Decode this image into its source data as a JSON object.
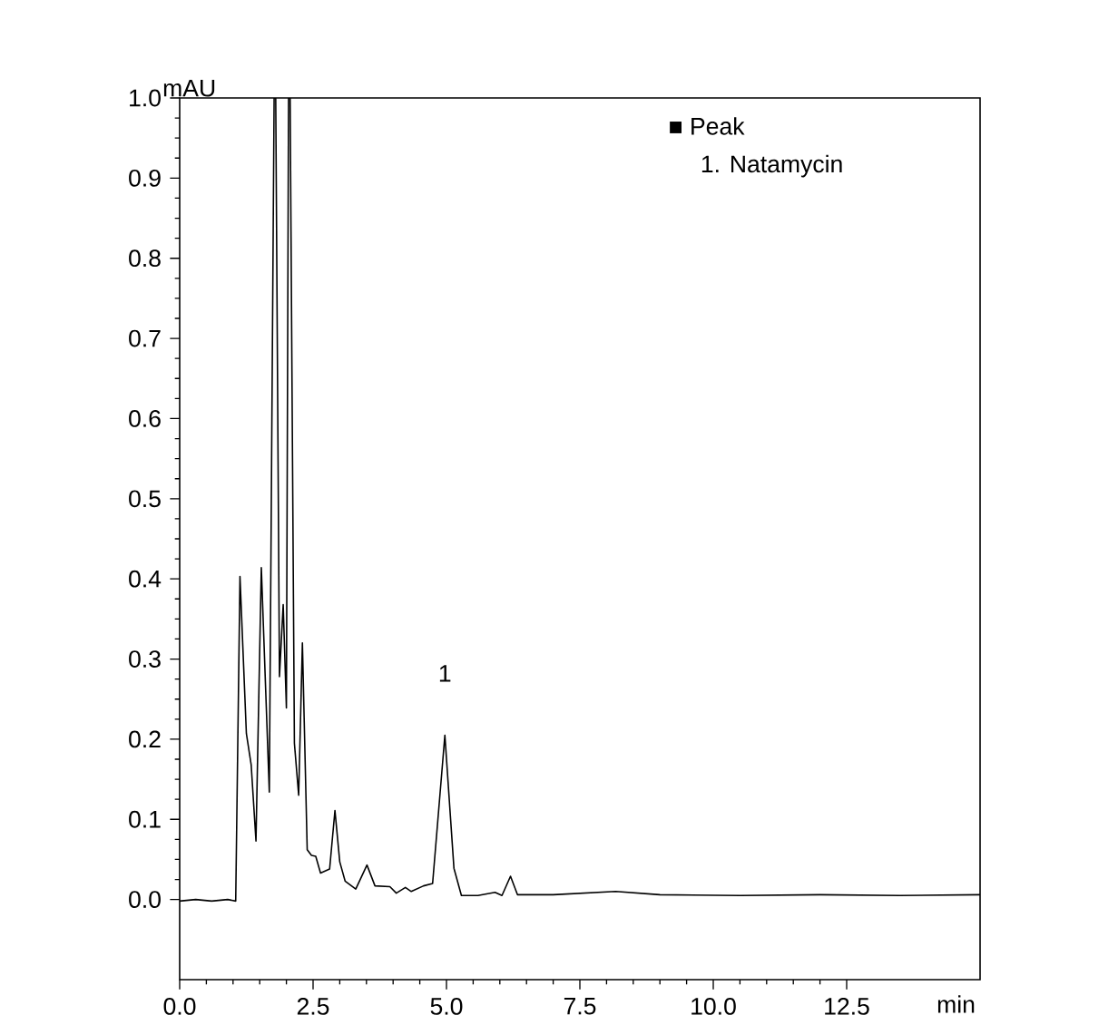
{
  "chart_data": {
    "type": "line",
    "xlabel": "min",
    "ylabel": "mAU",
    "xlim": [
      0,
      15
    ],
    "ylim": [
      -0.1,
      1.0
    ],
    "xticks": [
      {
        "value": 0,
        "label": "0.0"
      },
      {
        "value": 2.5,
        "label": "2.5"
      },
      {
        "value": 5,
        "label": "5.0"
      },
      {
        "value": 7.5,
        "label": "7.5"
      },
      {
        "value": 10,
        "label": "10.0"
      },
      {
        "value": 12.5,
        "label": "12.5"
      }
    ],
    "yticks": [
      {
        "value": 0,
        "label": "0.0"
      },
      {
        "value": 0.1,
        "label": "0.1"
      },
      {
        "value": 0.2,
        "label": "0.2"
      },
      {
        "value": 0.3,
        "label": "0.3"
      },
      {
        "value": 0.4,
        "label": "0.4"
      },
      {
        "value": 0.5,
        "label": "0.5"
      },
      {
        "value": 0.6,
        "label": "0.6"
      },
      {
        "value": 0.7,
        "label": "0.7"
      },
      {
        "value": 0.8,
        "label": "0.8"
      },
      {
        "value": 0.9,
        "label": "0.9"
      },
      {
        "value": 1.0,
        "label": "1.0"
      }
    ],
    "series": [
      {
        "color": "#000000",
        "x": [
          0,
          0.3,
          0.6,
          0.9,
          1.05,
          1.13,
          1.25,
          1.34,
          1.43,
          1.53,
          1.68,
          1.77,
          1.8,
          1.87,
          1.94,
          2.0,
          2.04,
          2.07,
          2.15,
          2.23,
          2.3,
          2.39,
          2.47,
          2.55,
          2.64,
          2.81,
          2.91,
          3.0,
          3.1,
          3.3,
          3.51,
          3.66,
          3.94,
          4.06,
          4.23,
          4.34,
          4.57,
          4.74,
          4.97,
          5.14,
          5.28,
          5.59,
          5.91,
          6.04,
          6.2,
          6.33,
          7.0,
          8.17,
          9.0,
          10.5,
          12.0,
          13.5,
          15.0
        ],
        "values": [
          -0.002,
          0.0,
          -0.002,
          0.0,
          -0.002,
          0.403,
          0.207,
          0.168,
          0.073,
          0.414,
          0.134,
          1.0,
          1.0,
          0.278,
          0.368,
          0.239,
          1.0,
          1.0,
          0.195,
          0.13,
          0.32,
          0.062,
          0.055,
          0.054,
          0.033,
          0.038,
          0.111,
          0.047,
          0.023,
          0.013,
          0.043,
          0.017,
          0.016,
          0.008,
          0.015,
          0.01,
          0.017,
          0.02,
          0.205,
          0.039,
          0.005,
          0.005,
          0.009,
          0.005,
          0.029,
          0.006,
          0.006,
          0.01,
          0.006,
          0.005,
          0.006,
          0.005,
          0.006
        ]
      }
    ],
    "marker": "none",
    "line_style": "solid",
    "annotations": [
      "■ Peak",
      "1. Natamycin",
      {
        "text": "1",
        "x": 4.97,
        "y": 0.205
      }
    ]
  }
}
